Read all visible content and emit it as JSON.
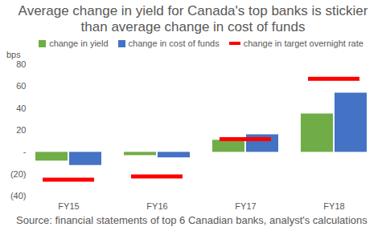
{
  "chart_data": {
    "type": "bar",
    "title": "Average change in yield for Canada's top banks is stickier than average change in cost of funds",
    "y_label": "bps",
    "caption": "Source:  financial statements of top 6 Canadian banks, analyst's calculations",
    "categories": [
      "FY15",
      "FY16",
      "FY17",
      "FY18"
    ],
    "series": [
      {
        "name": "change in yield",
        "color": "#70ad47",
        "type": "bar",
        "values": [
          -8,
          -3,
          11,
          35
        ]
      },
      {
        "name": "change in cost of funds",
        "color": "#4472c4",
        "type": "bar",
        "values": [
          -12,
          -5,
          16,
          54
        ]
      },
      {
        "name": "change in target overnight rate",
        "color": "#ff0000",
        "type": "scatter",
        "marker": "dash",
        "values": [
          -25,
          -22,
          12,
          67
        ]
      }
    ],
    "ylim": [
      -40,
      80
    ],
    "yticks": [
      {
        "value": -40,
        "label": "(40)"
      },
      {
        "value": -20,
        "label": "(20)"
      },
      {
        "value": 0,
        "label": "-"
      },
      20,
      40,
      60,
      80
    ],
    "grid": false,
    "legend": "top"
  }
}
